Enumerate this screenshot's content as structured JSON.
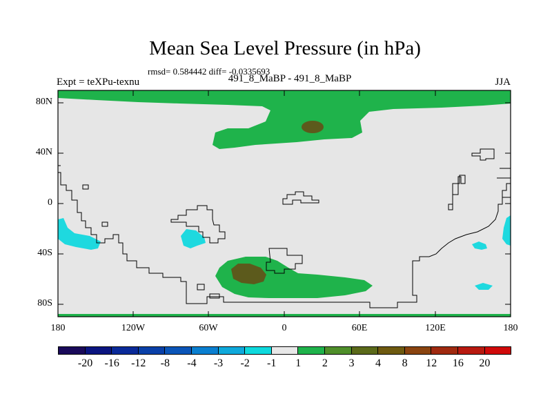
{
  "figure": {
    "title": "Mean Sea Level Pressure (in hPa)",
    "stats": "rmsd= 0.584442 diff= -0.0335693",
    "left_label": "Expt = teXPu-texnu",
    "center_label": "491_8_MaBP - 491_8_MaBP",
    "right_label": "JJA"
  },
  "axes": {
    "lat_ticks": [
      "80N",
      "40N",
      "0",
      "40S",
      "80S"
    ],
    "lon_ticks": [
      "180",
      "120W",
      "60W",
      "0",
      "60E",
      "120E",
      "180"
    ]
  },
  "map_colors": {
    "ocean_gray": "#e6e6e6",
    "positive_1_2": "#1fb34b",
    "positive_3_4": "#5c5a1c",
    "negative_2_1": "#1ed9df"
  },
  "colorbar": {
    "labels": [
      "-20",
      "-16",
      "-12",
      "-8",
      "-4",
      "-3",
      "-2",
      "-1",
      "1",
      "2",
      "3",
      "4",
      "8",
      "12",
      "16",
      "20"
    ],
    "colors": [
      "#1a0a5a",
      "#0b1580",
      "#0a2a99",
      "#0a40a8",
      "#0b55b8",
      "#0a7fd0",
      "#0fa9db",
      "#0ed9dd",
      "#e8e8e8",
      "#1fb34b",
      "#4f8f2a",
      "#5b6a1a",
      "#6e5a10",
      "#8a4410",
      "#a02a10",
      "#b81a10",
      "#d00a0a"
    ]
  }
}
